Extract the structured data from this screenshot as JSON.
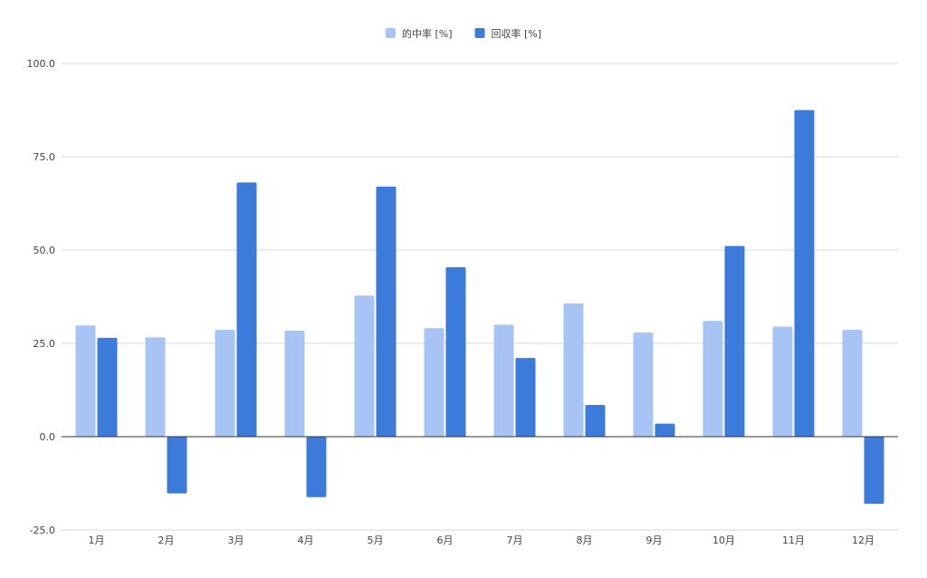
{
  "chart_data": {
    "type": "bar",
    "title": "",
    "xlabel": "",
    "ylabel": "",
    "ylim": [
      -25,
      100
    ],
    "yticks": [
      "-25.0",
      "0.0",
      "25.0",
      "50.0",
      "75.0",
      "100.0"
    ],
    "grid": true,
    "legend_position": "top-center",
    "categories": [
      "1月",
      "2月",
      "3月",
      "4月",
      "5月",
      "6月",
      "7月",
      "8月",
      "9月",
      "10月",
      "11月",
      "12月"
    ],
    "series": [
      {
        "name": "的中率 [%]",
        "color": "#a8c4f5",
        "values": [
          29.8,
          26.6,
          28.6,
          28.4,
          37.8,
          29.1,
          30.0,
          35.7,
          27.9,
          31.0,
          29.5,
          28.6
        ]
      },
      {
        "name": "回収率 [%]",
        "color": "#3d7bdb",
        "values": [
          26.5,
          -15.2,
          68.1,
          -16.2,
          67.0,
          45.4,
          21.1,
          8.5,
          3.5,
          51.1,
          87.5,
          -18.0
        ]
      }
    ]
  }
}
